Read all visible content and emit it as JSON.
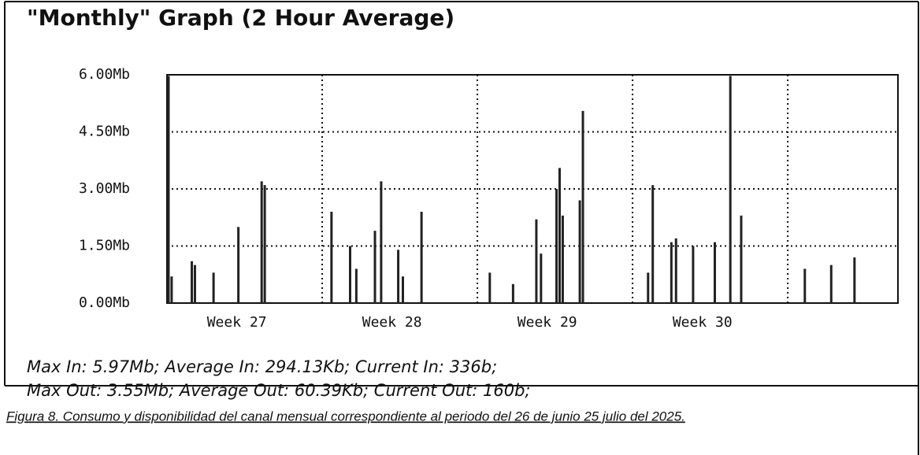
{
  "chart_data": {
    "type": "bar",
    "title": "\"Monthly\" Graph (2 Hour Average)",
    "x": [
      27.01,
      27.03,
      27.16,
      27.18,
      27.3,
      27.46,
      27.61,
      27.63,
      28.06,
      28.18,
      28.22,
      28.34,
      28.38,
      28.49,
      28.52,
      28.64,
      29.08,
      29.23,
      29.38,
      29.41,
      29.51,
      29.53,
      29.55,
      29.66,
      29.68,
      30.1,
      30.13,
      30.25,
      30.28,
      30.39,
      30.53,
      30.63,
      30.7,
      31.11,
      31.28,
      31.43
    ],
    "values": [
      5.97,
      0.7,
      1.1,
      1.0,
      0.8,
      2.0,
      3.2,
      3.1,
      2.4,
      1.5,
      0.9,
      1.9,
      3.2,
      1.4,
      0.7,
      2.4,
      0.8,
      0.5,
      2.2,
      1.3,
      3.0,
      3.55,
      2.3,
      2.7,
      5.05,
      0.8,
      3.1,
      1.6,
      1.7,
      1.5,
      1.6,
      5.97,
      2.3,
      0.9,
      1.0,
      1.2
    ],
    "color": "#222222",
    "xlim": [
      27,
      31.71
    ],
    "xticks": [
      {
        "value": 27.45,
        "label": "Week 27"
      },
      {
        "value": 28.45,
        "label": "Week 28"
      },
      {
        "value": 29.45,
        "label": "Week 29"
      },
      {
        "value": 30.45,
        "label": "Week 30"
      }
    ],
    "xgrid": [
      28,
      29,
      30,
      31
    ],
    "ylim": [
      0,
      6
    ],
    "yticks": [
      {
        "value": 0,
        "label": "0.00Mb"
      },
      {
        "value": 1.5,
        "label": "1.50Mb"
      },
      {
        "value": 3,
        "label": "3.00Mb"
      },
      {
        "value": 4.5,
        "label": "4.50Mb"
      },
      {
        "value": 6,
        "label": "6.00Mb"
      }
    ],
    "grid": true,
    "annotations": [
      "Max In: 5.97Mb; Average In: 294.13Kb; Current In: 336b;",
      "Max Out: 3.55Mb; Average Out: 60.39Kb; Current Out: 160b;"
    ],
    "caption": "Figura 8. Consumo y disponibilidad del canal mensual correspondiente al periodo del 26 de junio 25 julio del 2025."
  }
}
